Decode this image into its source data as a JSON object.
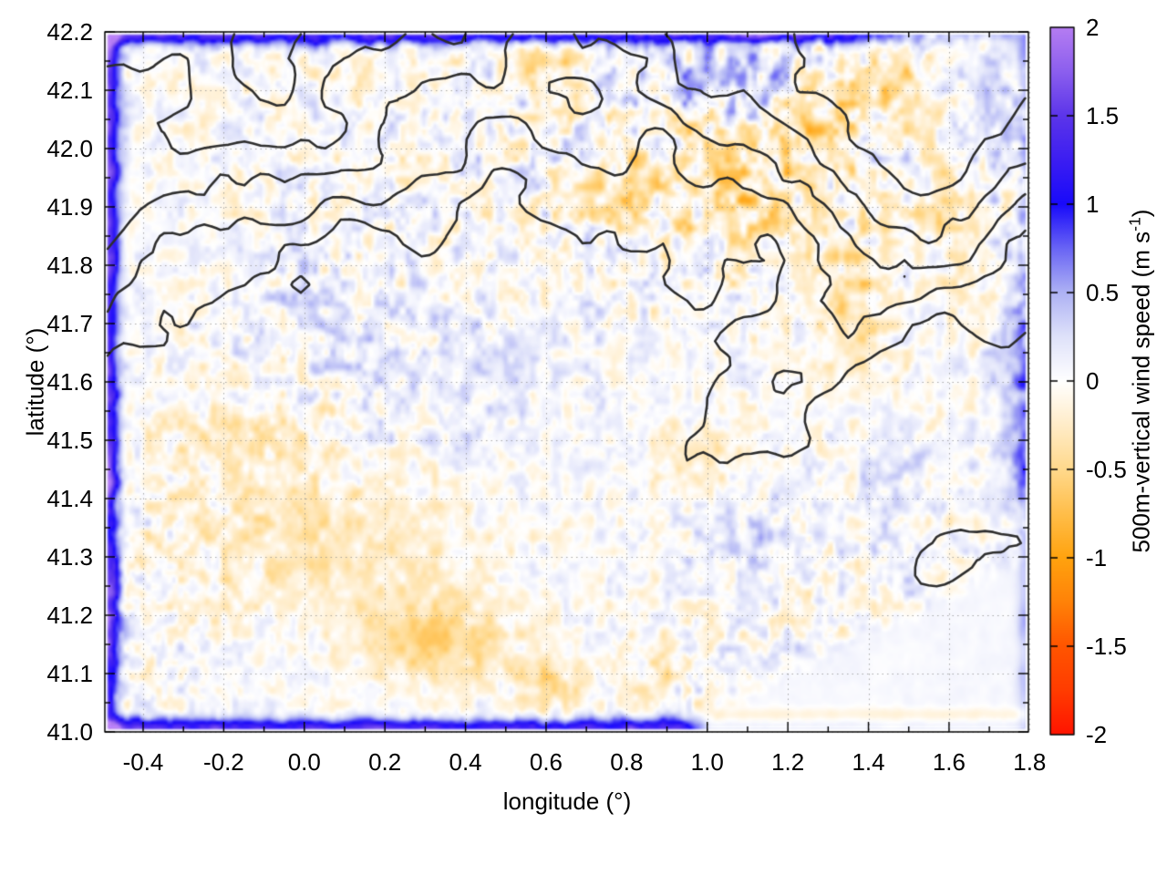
{
  "figure": {
    "background": "#ffffff",
    "description": "gnuplot-style map: 500 m vertical wind speed heatmap with terrain elevation contour lines over longitude/latitude"
  },
  "chart_data": {
    "type": "heatmap",
    "subtype": "2D geographic scalar field with black terrain contour overlay",
    "title": "",
    "xlabel": "longitude (°)",
    "ylabel": "latitude (°)",
    "xlim": [
      -0.495,
      1.797
    ],
    "ylim": [
      41.0,
      42.2
    ],
    "zlim": [
      -2,
      2
    ],
    "grid": {
      "visible": true,
      "style": "dotted",
      "color": "#8c8c8c"
    },
    "x_tick_values": [
      -0.4,
      -0.2,
      0.0,
      0.2,
      0.4,
      0.6,
      0.8,
      1.0,
      1.2,
      1.4,
      1.6,
      1.8
    ],
    "x_tick_labels": [
      "-0.4",
      "-0.2",
      "0.0",
      "0.2",
      "0.4",
      "0.6",
      "0.8",
      "1.0",
      "1.2",
      "1.4",
      "1.6",
      "1.8"
    ],
    "x_minor_step": 0.1,
    "y_tick_values": [
      41.0,
      41.1,
      41.2,
      41.3,
      41.4,
      41.5,
      41.6,
      41.7,
      41.8,
      41.9,
      42.0,
      42.1,
      42.2
    ],
    "y_tick_labels": [
      "41.0",
      "41.1",
      "41.2",
      "41.3",
      "41.4",
      "41.5",
      "41.6",
      "41.7",
      "41.8",
      "41.9",
      "42.0",
      "42.1",
      "42.2"
    ],
    "y_minor_step": 0.05,
    "colorbar": {
      "label_main": "500m-vertical wind speed (m s",
      "label_sup": "-1",
      "label_end": ")",
      "min": -2,
      "max": 2,
      "tick_values": [
        2,
        1.5,
        1,
        0.5,
        0,
        -0.5,
        -1,
        -1.5,
        -2
      ],
      "tick_labels": [
        "2",
        "1.5",
        "1",
        "0.5",
        "0",
        "-0.5",
        "-1",
        "-1.5",
        "-2"
      ],
      "palette_stops": [
        {
          "v": -2.0,
          "c": "#ff1400"
        },
        {
          "v": -1.75,
          "c": "#ff3c00"
        },
        {
          "v": -1.5,
          "c": "#ff5500"
        },
        {
          "v": -1.25,
          "c": "#ff8208"
        },
        {
          "v": -1.0,
          "c": "#ffa30f"
        },
        {
          "v": -0.75,
          "c": "#ffbe4a"
        },
        {
          "v": -0.5,
          "c": "#ffd98c"
        },
        {
          "v": -0.25,
          "c": "#ffecc8"
        },
        {
          "v": 0.0,
          "c": "#ffffff"
        },
        {
          "v": 0.25,
          "c": "#dfe2fa"
        },
        {
          "v": 0.5,
          "c": "#aeb2f4"
        },
        {
          "v": 0.75,
          "c": "#6964f5"
        },
        {
          "v": 1.0,
          "c": "#190afa"
        },
        {
          "v": 1.25,
          "c": "#3c1ef2"
        },
        {
          "v": 1.5,
          "c": "#5c35ea"
        },
        {
          "v": 1.75,
          "c": "#8c5fee"
        },
        {
          "v": 2.0,
          "c": "#b57df2"
        }
      ]
    },
    "field": {
      "units": "m/s",
      "typical_interior_range": [
        -0.6,
        0.6
      ],
      "data_domain": {
        "lon": [
          -0.488,
          1.789
        ],
        "lat": [
          41.005,
          42.196
        ]
      },
      "noise": {
        "cells_x": 84,
        "cells_y": 50,
        "amplitude": 0.6,
        "octaves": 2
      },
      "regional_amp": {
        "base": 0.45,
        "var": 0.5,
        "boost": [
          1.05,
          42.0,
          0.5,
          0.3,
          0.55
        ]
      },
      "edge_bands": [
        {
          "edge": "left",
          "amp": 1.6,
          "sigma": 0.03
        },
        {
          "edge": "top",
          "amp": 1.35,
          "sigma": 0.018,
          "fade_after_lon": 1.4,
          "fade_rate": 5,
          "fade_floor": 0.25
        },
        {
          "edge": "bottom",
          "amp": 1.4,
          "sigma": 0.018,
          "fade_after_lon": 0.93,
          "fade_rate": 12,
          "fade_floor": 0.05
        },
        {
          "edge": "right",
          "amp": 0.55,
          "sigma": 0.02
        }
      ],
      "warm_patches": [
        [
          0.78,
          41.93,
          0.1,
          0.06,
          -0.45
        ],
        [
          1.05,
          41.93,
          0.17,
          0.1,
          -0.5
        ],
        [
          1.3,
          42.03,
          0.1,
          0.08,
          -0.45
        ],
        [
          0.6,
          42.15,
          0.09,
          0.04,
          -0.4
        ],
        [
          1.47,
          42.11,
          0.08,
          0.06,
          -0.45
        ],
        [
          1.36,
          41.72,
          0.09,
          0.15,
          -0.38
        ],
        [
          0.33,
          41.16,
          0.18,
          0.07,
          -0.55
        ],
        [
          0.6,
          41.08,
          0.08,
          0.05,
          -0.42
        ],
        [
          0.05,
          41.33,
          0.35,
          0.12,
          -0.3
        ],
        [
          -0.15,
          41.5,
          0.18,
          0.07,
          -0.3
        ],
        [
          0.88,
          41.12,
          0.05,
          0.05,
          -0.4
        ],
        [
          1.58,
          41.92,
          0.06,
          0.1,
          -0.33
        ],
        [
          0.97,
          41.47,
          0.1,
          0.05,
          -0.28
        ]
      ],
      "cool_patches": [
        [
          0.45,
          41.62,
          0.28,
          0.16,
          0.14
        ],
        [
          1.76,
          41.55,
          0.05,
          0.22,
          0.45
        ],
        [
          1.7,
          42.06,
          0.07,
          0.08,
          0.4
        ],
        [
          1.06,
          42.12,
          0.14,
          0.05,
          0.45
        ],
        [
          0.02,
          41.74,
          0.16,
          0.1,
          0.14
        ],
        [
          1.12,
          41.32,
          0.14,
          0.09,
          0.22
        ],
        [
          1.45,
          41.45,
          0.12,
          0.1,
          0.18
        ]
      ],
      "sea": {
        "coast_from": [
          0.83,
          41.0
        ],
        "coast_to": [
          1.79,
          41.33
        ],
        "tint": 0.06,
        "bottom_streak": [
          41.03,
          0.012,
          -0.22
        ],
        "character": "smooth near-zero field (sea surface), lower-right corner"
      }
    },
    "contours": {
      "color": "#2e2e2e",
      "line_width": 2.6,
      "levels": 5,
      "grid_cells": [
        114,
        86
      ],
      "meaning": "terrain elevation contour lines; dense in mountainous north/north-east, open valley in centre, coastline running diagonally in lower-right"
    },
    "notable_features": [
      "deep blue (+1 to +1.5 m/s) band along left, top and bottom data edges",
      "bottom blue band stops near lon 0.95, top band fades after lon 1.4",
      "pale mottled blue/orange texture over land",
      "stronger orange (-0.5 m/s) patches in north-east quadrant and along the southern valley",
      "smooth whitish sea area in bottom-right with faint orange streak near lat 41.03"
    ]
  }
}
